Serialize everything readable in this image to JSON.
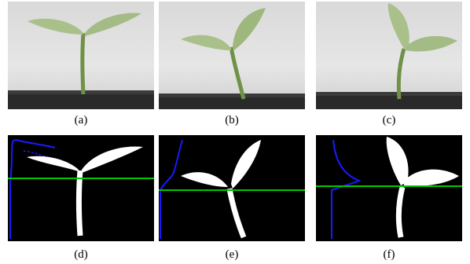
{
  "figure": {
    "panels": [
      {
        "id": "a",
        "label": "(a)",
        "kind": "photo",
        "subject": "seedling-upright-leaves"
      },
      {
        "id": "b",
        "label": "(b)",
        "kind": "photo",
        "subject": "seedling-spread-leaves"
      },
      {
        "id": "c",
        "label": "(c)",
        "kind": "photo",
        "subject": "seedling-raised-leaves"
      },
      {
        "id": "d",
        "label": "(d)",
        "kind": "segmentation",
        "subject": "seedling-a-silhouette"
      },
      {
        "id": "e",
        "label": "(e)",
        "kind": "segmentation",
        "subject": "seedling-b-silhouette"
      },
      {
        "id": "f",
        "label": "(f)",
        "kind": "segmentation",
        "subject": "seedling-c-silhouette"
      }
    ],
    "colors": {
      "silhouette": "#ffffff",
      "segmentation_background": "#000000",
      "threshold_line": "#00c800",
      "profile_curve": "#1a1aff",
      "leaf": "#a9c08a",
      "stem": "#6f9148",
      "tray": "#2a2a2a",
      "backdrop": "#dedede"
    }
  }
}
